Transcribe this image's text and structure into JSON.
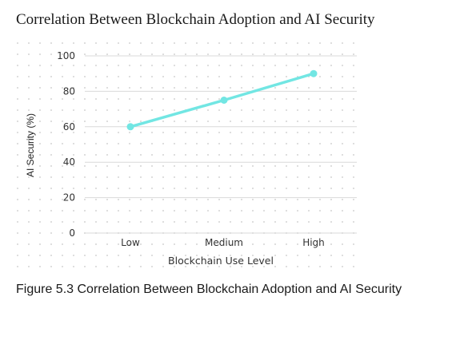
{
  "page": {
    "title": "Correlation Between Blockchain Adoption and AI Security",
    "caption": "Figure 5.3 Correlation Between Blockchain Adoption and AI Security"
  },
  "chart_data": {
    "type": "line",
    "categories": [
      "Low",
      "Medium",
      "High"
    ],
    "series": [
      {
        "values": [
          60,
          75,
          90
        ],
        "color": "#72e6e3"
      }
    ],
    "xlabel": "Blockchain Use Level",
    "ylabel": "AI Security (%)",
    "ylim": [
      0,
      100
    ],
    "yticks": [
      "100",
      "80",
      "60",
      "40",
      "20",
      "0"
    ],
    "grid": true,
    "background": "dotted",
    "legend": "none"
  }
}
